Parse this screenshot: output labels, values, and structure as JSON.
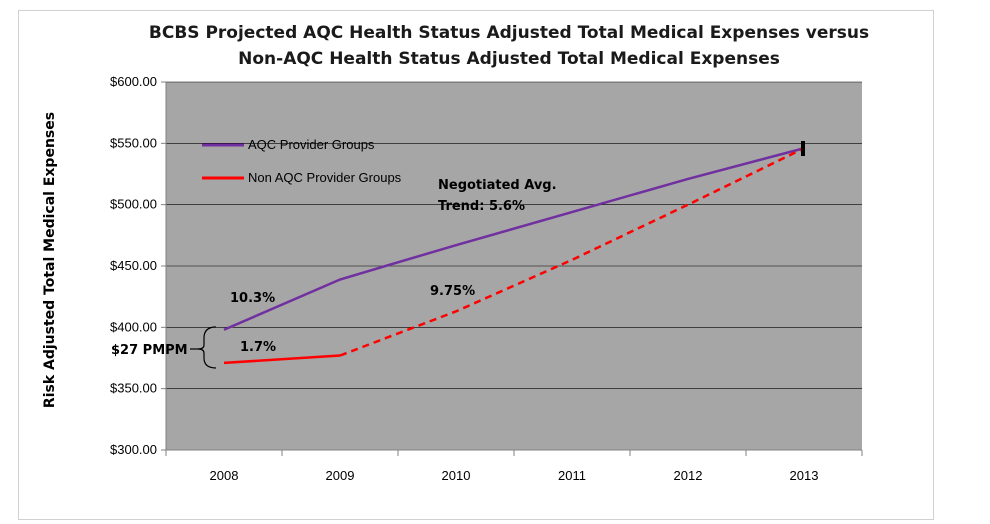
{
  "chart_data": {
    "type": "line",
    "title_lines": [
      "BCBS Projected AQC Health Status Adjusted Total Medical Expenses versus",
      "Non-AQC  Health Status Adjusted Total Medical Expenses"
    ],
    "ylabel": "Risk Adjusted Total Medical Expenses",
    "xlabel": "",
    "categories": [
      "2008",
      "2009",
      "2010",
      "2011",
      "2012",
      "2013"
    ],
    "ylim": [
      300,
      600
    ],
    "yticks": [
      300,
      350,
      400,
      450,
      500,
      550,
      600
    ],
    "ytick_labels": [
      "$300.00",
      "$350.00",
      "$400.00",
      "$450.00",
      "$500.00",
      "$550.00",
      "$600.00"
    ],
    "grid": "horizontal",
    "plot_background": "#a6a6a6",
    "legend_position": "top-left",
    "series": [
      {
        "name": "AQC Provider Groups",
        "color": "#7030a0",
        "style": "solid",
        "values": [
          398,
          439,
          467,
          494,
          521,
          546
        ]
      },
      {
        "name": "Non AQC Provider Groups",
        "color": "#ff0000",
        "style": "solid-then-dashed",
        "solid_until_index": 1,
        "values": [
          371,
          377,
          413,
          455,
          500,
          546
        ]
      }
    ],
    "annotations": {
      "aqc_growth": "10.3%",
      "non_aqc_growth": "1.7%",
      "projected_growth": "9.75%",
      "trend_line1": "Negotiated Avg.",
      "trend_line2": "Trend: 5.6%",
      "gap_label": "$27 PMPM"
    }
  }
}
